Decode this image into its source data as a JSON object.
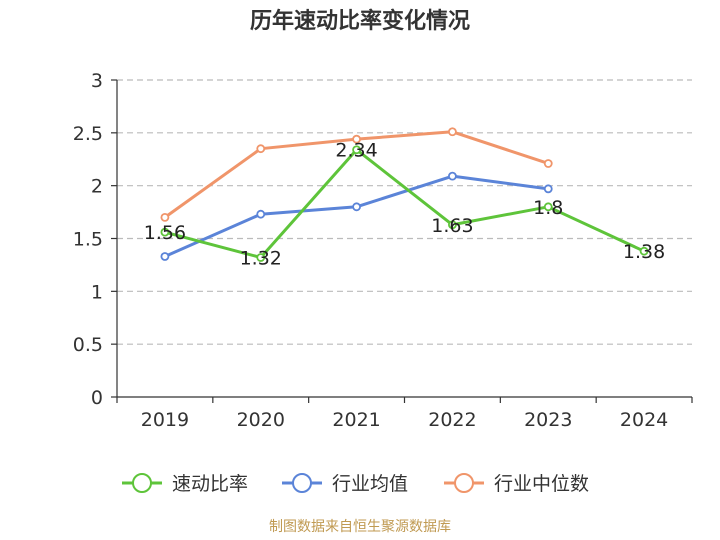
{
  "chart_data": {
    "type": "line",
    "title": "历年速动比率变化情况",
    "categories": [
      "2019",
      "2020",
      "2021",
      "2022",
      "2023",
      "2024"
    ],
    "y_ticks": [
      "0",
      "0.5",
      "1",
      "1.5",
      "2",
      "2.5",
      "3"
    ],
    "ylim": [
      0,
      3
    ],
    "grid": true,
    "legend_position": "bottom",
    "series": [
      {
        "name": "速动比率",
        "color": "#5ec43a",
        "values": [
          1.56,
          1.32,
          2.34,
          1.63,
          1.8,
          1.38
        ],
        "labels": [
          "1.56",
          "1.32",
          "2.34",
          "1.63",
          "1.8",
          "1.38"
        ]
      },
      {
        "name": "行业均值",
        "color": "#5b84d8",
        "values": [
          1.33,
          1.73,
          1.8,
          2.09,
          1.97,
          null
        ]
      },
      {
        "name": "行业中位数",
        "color": "#f0956a",
        "values": [
          1.7,
          2.35,
          2.44,
          2.51,
          2.21,
          null
        ]
      }
    ]
  },
  "source": "制图数据来自恒生聚源数据库"
}
